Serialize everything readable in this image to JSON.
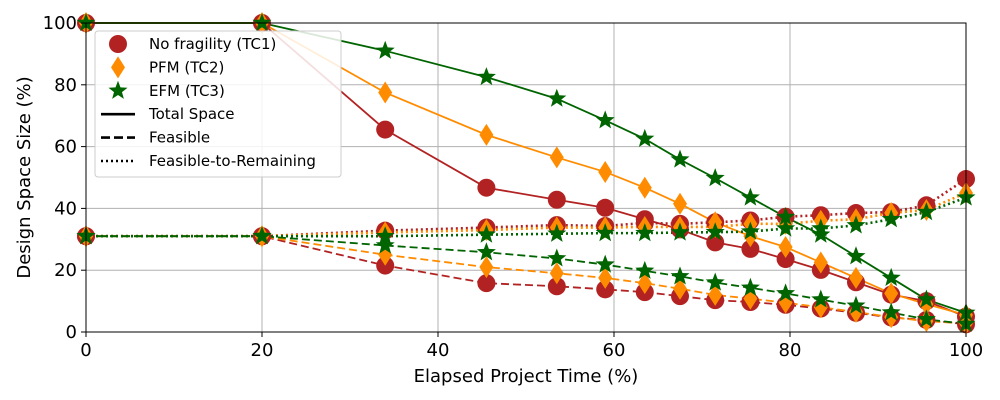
{
  "chart_data": {
    "type": "line",
    "xlabel": "Elapsed Project Time (%)",
    "ylabel": "Design Space Size (%)",
    "xlim": [
      0,
      100
    ],
    "ylim": [
      0,
      100
    ],
    "xticks": [
      0,
      20,
      40,
      60,
      80,
      100
    ],
    "yticks": [
      0,
      20,
      40,
      60,
      80,
      100
    ],
    "grid": true,
    "legend_position": "upper-left",
    "x": [
      0,
      20,
      34,
      45.5,
      53.5,
      59,
      63.5,
      67.5,
      71.5,
      75.5,
      79.5,
      83.5,
      87.5,
      91.5,
      95.5,
      100
    ],
    "series": [
      {
        "name": "No fragility (TC1)",
        "variant": "Total Space",
        "color": "#b22222",
        "marker": "circle",
        "style": "solid",
        "values": [
          100,
          100,
          65.5,
          46.7,
          42.8,
          40.2,
          36.5,
          33.2,
          29.0,
          26.9,
          23.6,
          20.1,
          16.1,
          12.1,
          10.0,
          5.0
        ]
      },
      {
        "name": "No fragility (TC1)",
        "variant": "Feasible",
        "color": "#b22222",
        "marker": "circle",
        "style": "dashed",
        "values": [
          31.0,
          31.0,
          21.5,
          15.8,
          14.8,
          13.8,
          12.9,
          11.6,
          10.3,
          9.7,
          8.8,
          7.6,
          6.2,
          4.7,
          3.9,
          2.5
        ]
      },
      {
        "name": "No fragility (TC1)",
        "variant": "Feasible-to-Remaining",
        "color": "#b22222",
        "marker": "circle",
        "style": "dotted",
        "values": [
          31.0,
          31.0,
          32.8,
          33.8,
          34.6,
          34.3,
          35.3,
          35.0,
          35.5,
          36.1,
          37.3,
          37.8,
          38.5,
          38.8,
          41.0,
          49.5
        ]
      },
      {
        "name": "PFM (TC2)",
        "variant": "Total Space",
        "color": "#ff8c00",
        "marker": "diamond",
        "style": "solid",
        "values": [
          100,
          100,
          77.5,
          63.8,
          56.5,
          51.8,
          46.7,
          41.5,
          35.5,
          31.0,
          27.5,
          22.5,
          17.5,
          12.5,
          9.0,
          5.5
        ]
      },
      {
        "name": "PFM (TC2)",
        "variant": "Feasible",
        "color": "#ff8c00",
        "marker": "diamond",
        "style": "dashed",
        "values": [
          31.0,
          31.0,
          25.0,
          21.0,
          19.0,
          17.5,
          15.8,
          14.0,
          12.0,
          10.8,
          9.5,
          8.0,
          6.5,
          4.8,
          3.5,
          2.8
        ]
      },
      {
        "name": "PFM (TC2)",
        "variant": "Feasible-to-Remaining",
        "color": "#ff8c00",
        "marker": "diamond",
        "style": "dotted",
        "values": [
          31.0,
          31.0,
          32.2,
          33.0,
          33.8,
          33.8,
          34.0,
          34.0,
          34.0,
          35.0,
          35.0,
          36.0,
          36.5,
          38.5,
          39.5,
          45.0
        ]
      },
      {
        "name": "EFM (TC3)",
        "variant": "Total Space",
        "color": "#006400",
        "marker": "star",
        "style": "solid",
        "values": [
          100,
          100,
          91.0,
          82.5,
          75.5,
          68.5,
          62.5,
          55.8,
          49.8,
          43.5,
          37.2,
          31.5,
          24.5,
          17.5,
          10.5,
          6.2
        ]
      },
      {
        "name": "EFM (TC3)",
        "variant": "Feasible",
        "color": "#006400",
        "marker": "star",
        "style": "dashed",
        "values": [
          31.0,
          31.0,
          28.0,
          25.8,
          23.8,
          21.8,
          19.8,
          18.0,
          16.0,
          14.3,
          12.5,
          10.5,
          8.5,
          6.3,
          4.1,
          2.6
        ]
      },
      {
        "name": "EFM (TC3)",
        "variant": "Feasible-to-Remaining",
        "color": "#006400",
        "marker": "star",
        "style": "dotted",
        "values": [
          31.0,
          31.0,
          31.0,
          31.5,
          31.8,
          32.0,
          32.0,
          32.2,
          32.3,
          32.5,
          33.5,
          33.5,
          34.5,
          36.5,
          38.8,
          43.5
        ]
      }
    ],
    "legend": {
      "markers": [
        {
          "label": "No fragility (TC1)",
          "color": "#b22222",
          "marker": "circle"
        },
        {
          "label": "PFM (TC2)",
          "color": "#ff8c00",
          "marker": "diamond"
        },
        {
          "label": "EFM (TC3)",
          "color": "#006400",
          "marker": "star"
        }
      ],
      "styles": [
        {
          "label": "Total Space",
          "style": "solid"
        },
        {
          "label": "Feasible",
          "style": "dashed"
        },
        {
          "label": "Feasible-to-Remaining",
          "style": "dotted"
        }
      ]
    }
  }
}
